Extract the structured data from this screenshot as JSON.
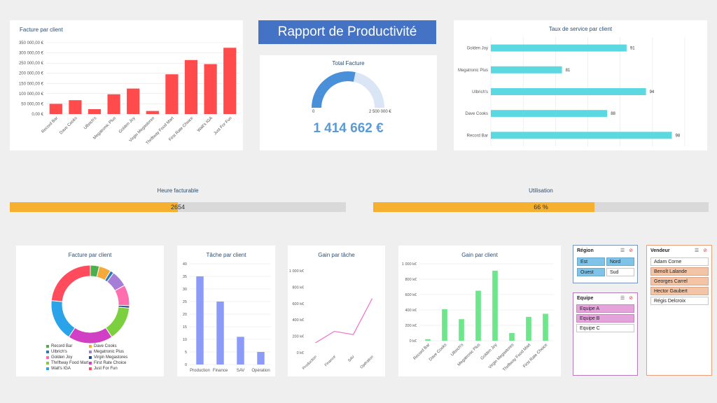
{
  "report_title": "Rapport de Productivité",
  "total_facture": {
    "title": "Total Facture",
    "value": "1 414 662 €",
    "min_label": "0",
    "max_label": "2 500 000 €",
    "fraction": 0.566
  },
  "progress": {
    "heure": {
      "label": "Heure facturable",
      "value_text": "2654",
      "fraction": 0.5
    },
    "utilisation": {
      "label": "Utilisation",
      "value_text": "66 %",
      "fraction": 0.66
    }
  },
  "slicers": {
    "region": {
      "title": "Région",
      "items": [
        "Est",
        "Nord",
        "Ouest",
        "Sud"
      ]
    },
    "equipe": {
      "title": "Equipe",
      "items": [
        "Equipe A",
        "Equipe B",
        "Equipe C"
      ]
    },
    "vendeur": {
      "title": "Vendeur",
      "items": [
        "Adam Corne",
        "Benoît Lalande",
        "Georges Carrel",
        "Hector Gaubert",
        "Régis Delcroix"
      ]
    }
  },
  "chart_data": [
    {
      "id": "facture_bar",
      "type": "bar",
      "title": "Facture par client",
      "categories": [
        "Record Bar",
        "Dave Cooks",
        "Ulbrich's",
        "Megatronic Plus",
        "Golden Joy",
        "Virgin Megastores",
        "Thriftway Food Mart",
        "First Rate Choice",
        "Walt's IGA",
        "Just For Fun"
      ],
      "values": [
        50000,
        68000,
        24000,
        97000,
        125000,
        15000,
        195000,
        265000,
        245000,
        325000
      ],
      "yticks": [
        "0,00 €",
        "50 000,00 €",
        "100 000,00 €",
        "150 000,00 €",
        "200 000,00 €",
        "250 000,00 €",
        "300 000,00 €",
        "350 000,00 €"
      ],
      "ylim": [
        0,
        350000
      ],
      "color": "#ff4b4b"
    },
    {
      "id": "service_hbar",
      "type": "bar",
      "orientation": "horizontal",
      "title": "Taux de service par client",
      "categories": [
        "Golden Joy",
        "Megatronic Plus",
        "Ulbrich's",
        "Dave Cooks",
        "Record Bar"
      ],
      "values": [
        91,
        81,
        94,
        88,
        98
      ],
      "labels": [
        "91",
        "81",
        "94",
        "88",
        "98"
      ],
      "xlim": [
        70,
        100
      ],
      "color": "#5bd8e0"
    },
    {
      "id": "facture_donut",
      "type": "pie",
      "title": "Facture par client",
      "labels": [
        "Record Bar",
        "Dave Cooks",
        "Ulbrich's",
        "Megatronic Plus",
        "Golden Joy",
        "Virgin Megastores",
        "Thriftway Food Mart",
        "First Rate Choice",
        "Walt's IGA",
        "Just For Fun"
      ],
      "values": [
        30000,
        40000,
        12000,
        55000,
        70000,
        8000,
        115000,
        150000,
        140000,
        190000
      ],
      "colors": [
        "#4cae4c",
        "#f6a93b",
        "#2b7bb9",
        "#a67ed8",
        "#ff6fb0",
        "#234a8c",
        "#7ccf3e",
        "#d140c4",
        "#2ba3e8",
        "#ff4b5c"
      ]
    },
    {
      "id": "tache_bar",
      "type": "bar",
      "title": "Tâche par client",
      "categories": [
        "Production",
        "Finance",
        "SAV",
        "Opération"
      ],
      "values": [
        35,
        25,
        11,
        5
      ],
      "yticks": [
        "0",
        "5",
        "10",
        "15",
        "20",
        "25",
        "30",
        "35",
        "40"
      ],
      "ylim": [
        0,
        40
      ],
      "color": "#8c9bf7"
    },
    {
      "id": "gain_tache_line",
      "type": "line",
      "title": "Gain par tâche",
      "categories": [
        "Production",
        "Finance",
        "SAV",
        "Opération"
      ],
      "values": [
        120,
        260,
        220,
        660
      ],
      "yticks": [
        "0 k€",
        "200 k€",
        "400 k€",
        "600 k€",
        "800 k€",
        "1 000 k€"
      ],
      "ylim": [
        0,
        1000
      ],
      "color": "#ee6fc8"
    },
    {
      "id": "gain_client_bar",
      "type": "bar",
      "title": "Gain par client",
      "categories": [
        "Record Bar",
        "Dave Cooks",
        "Ulbrich's",
        "Megatronic Plus",
        "Golden Joy",
        "Virgin Megastores",
        "Thriftway Food Mart",
        "First Rate Choice"
      ],
      "values": [
        20,
        410,
        280,
        650,
        910,
        100,
        310,
        350
      ],
      "yticks": [
        "0 k€",
        "200 k€",
        "400 k€",
        "600 k€",
        "800 k€",
        "1 000 k€"
      ],
      "ylim": [
        0,
        1000
      ],
      "color": "#6ee68c"
    }
  ]
}
